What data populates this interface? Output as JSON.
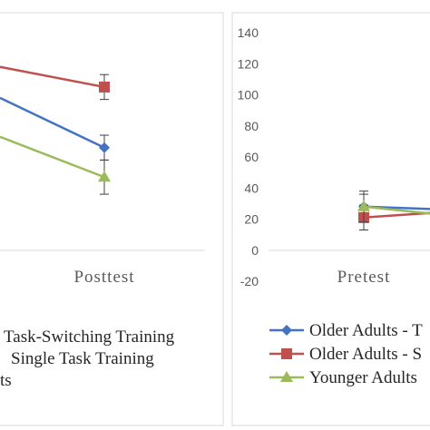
{
  "chart_data": [
    {
      "type": "line",
      "categories": [
        "Pretest",
        "Posttest"
      ],
      "category_labels_visible": [
        "Posttest"
      ],
      "series": [
        {
          "name": "Older Adults - Task-Switching Training",
          "color": "#4472C4",
          "marker": "diamond",
          "values": [
            null,
            66
          ],
          "errors": [
            null,
            8
          ]
        },
        {
          "name": "Older Adults - Single Task Training",
          "color": "#C0504D",
          "marker": "square",
          "values": [
            null,
            105
          ],
          "errors": [
            null,
            8
          ]
        },
        {
          "name": "Younger Adults",
          "color": "#9BBB59",
          "marker": "triangle",
          "values": [
            null,
            47
          ],
          "errors": [
            null,
            11
          ]
        }
      ],
      "legend_visible": [
        "Task-Switching Training",
        "Single Task Training",
        "ts"
      ],
      "legend_position": "bottom",
      "grid": false
    },
    {
      "type": "line",
      "categories": [
        "Pretest",
        "Posttest"
      ],
      "series": [
        {
          "name": "Older Adults - T",
          "color": "#4472C4",
          "marker": "diamond",
          "values": [
            28,
            26
          ],
          "errors": [
            8,
            null
          ]
        },
        {
          "name": "Older Adults - S",
          "color": "#C0504D",
          "marker": "square",
          "values": [
            21,
            25
          ],
          "errors": [
            8,
            null
          ]
        },
        {
          "name": "Younger Adults",
          "color": "#9BBB59",
          "marker": "triangle",
          "values": [
            28,
            22
          ],
          "errors": [
            10,
            null
          ]
        }
      ],
      "ylim": [
        -20,
        140
      ],
      "yticks": [
        "140",
        "120",
        "100",
        "80",
        "60",
        "40",
        "20",
        "0",
        "-20"
      ],
      "legend_position": "bottom",
      "grid": false
    }
  ]
}
